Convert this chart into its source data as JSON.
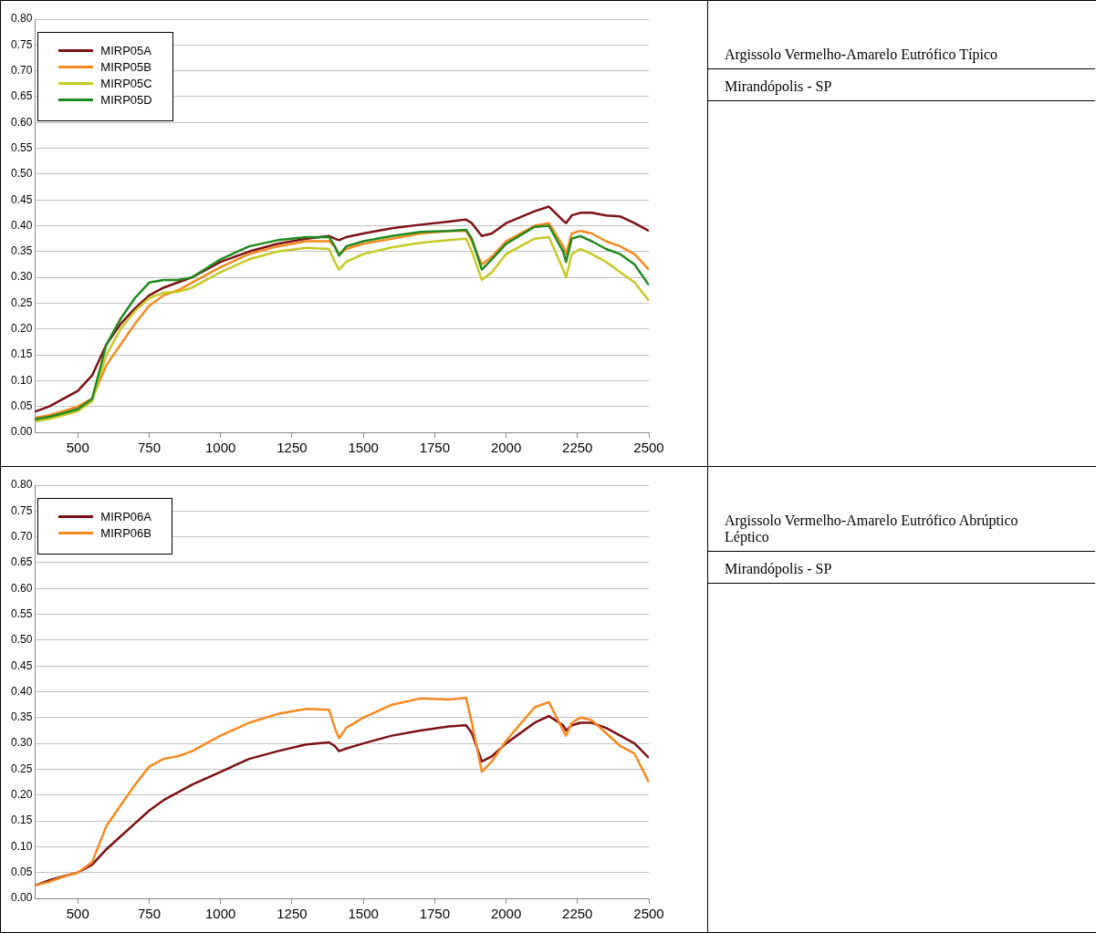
{
  "chart_data": [
    {
      "type": "line",
      "legend": "top left",
      "grid": "y",
      "xlim": [
        350,
        2500
      ],
      "xticks": [
        500,
        750,
        1000,
        1250,
        1500,
        1750,
        2000,
        2250,
        2500
      ],
      "ylim": [
        0,
        0.8
      ],
      "yticks": [
        {
          "value": 0,
          "label": "0.00"
        },
        {
          "value": 0.05,
          "label": "0.05"
        },
        {
          "value": 0.1,
          "label": "0.10"
        },
        {
          "value": 0.15,
          "label": "0.15"
        },
        {
          "value": 0.2,
          "label": "0.20"
        },
        {
          "value": 0.25,
          "label": "0.25"
        },
        {
          "value": 0.3,
          "label": "0.30"
        },
        {
          "value": 0.35,
          "label": "0.35"
        },
        {
          "value": 0.4,
          "label": "0.40"
        },
        {
          "value": 0.45,
          "label": "0.45"
        },
        {
          "value": 0.5,
          "label": "0.50"
        },
        {
          "value": 0.55,
          "label": "0.55"
        },
        {
          "value": 0.6,
          "label": "0.60"
        },
        {
          "value": 0.65,
          "label": "0.65"
        },
        {
          "value": 0.7,
          "label": "0.70"
        },
        {
          "value": 0.75,
          "label": "0.75"
        },
        {
          "value": 0.8,
          "label": "0.80"
        }
      ],
      "x": [
        350,
        400,
        450,
        500,
        550,
        600,
        650,
        700,
        750,
        800,
        850,
        900,
        1000,
        1100,
        1200,
        1300,
        1380,
        1400,
        1415,
        1440,
        1500,
        1600,
        1700,
        1800,
        1860,
        1880,
        1915,
        1950,
        2000,
        2100,
        2150,
        2200,
        2210,
        2230,
        2260,
        2300,
        2350,
        2400,
        2450,
        2500
      ],
      "series": [
        {
          "name": "MIRP05A",
          "color": "#7b1113",
          "values": [
            0.04,
            0.05,
            0.065,
            0.08,
            0.11,
            0.17,
            0.21,
            0.24,
            0.265,
            0.28,
            0.29,
            0.3,
            0.33,
            0.35,
            0.365,
            0.375,
            0.38,
            0.375,
            0.372,
            0.378,
            0.385,
            0.395,
            0.402,
            0.408,
            0.412,
            0.405,
            0.38,
            0.385,
            0.405,
            0.428,
            0.437,
            0.41,
            0.405,
            0.42,
            0.425,
            0.425,
            0.42,
            0.418,
            0.405,
            0.39
          ]
        },
        {
          "name": "MIRP05B",
          "color": "#f7891f",
          "values": [
            0.028,
            0.033,
            0.041,
            0.05,
            0.065,
            0.13,
            0.17,
            0.21,
            0.245,
            0.265,
            0.275,
            0.29,
            0.32,
            0.345,
            0.36,
            0.37,
            0.37,
            0.36,
            0.345,
            0.355,
            0.365,
            0.375,
            0.385,
            0.39,
            0.39,
            0.37,
            0.325,
            0.34,
            0.37,
            0.4,
            0.405,
            0.36,
            0.345,
            0.385,
            0.39,
            0.385,
            0.37,
            0.36,
            0.345,
            0.315
          ]
        },
        {
          "name": "MIRP05C",
          "color": "#c6c926",
          "values": [
            0.021,
            0.026,
            0.033,
            0.041,
            0.06,
            0.15,
            0.2,
            0.235,
            0.26,
            0.27,
            0.272,
            0.28,
            0.31,
            0.335,
            0.35,
            0.357,
            0.355,
            0.33,
            0.315,
            0.33,
            0.345,
            0.358,
            0.367,
            0.372,
            0.375,
            0.35,
            0.295,
            0.31,
            0.345,
            0.375,
            0.378,
            0.315,
            0.3,
            0.345,
            0.355,
            0.345,
            0.33,
            0.31,
            0.29,
            0.255
          ]
        },
        {
          "name": "MIRP05D",
          "color": "#1f8a1f",
          "values": [
            0.025,
            0.03,
            0.037,
            0.045,
            0.065,
            0.17,
            0.22,
            0.26,
            0.29,
            0.295,
            0.295,
            0.3,
            0.335,
            0.36,
            0.372,
            0.378,
            0.378,
            0.36,
            0.342,
            0.36,
            0.37,
            0.38,
            0.388,
            0.39,
            0.392,
            0.375,
            0.315,
            0.335,
            0.365,
            0.398,
            0.4,
            0.35,
            0.33,
            0.375,
            0.38,
            0.37,
            0.355,
            0.345,
            0.325,
            0.285
          ]
        }
      ]
    },
    {
      "type": "other",
      "annotations": [
        "Argissolo Vermelho-Amarelo Eutrófico Típico",
        "Mirandópolis - SP"
      ]
    },
    {
      "type": "line",
      "legend": "top left",
      "grid": "y",
      "xlim": [
        350,
        2500
      ],
      "xticks": [
        500,
        750,
        1000,
        1250,
        1500,
        1750,
        2000,
        2250,
        2500
      ],
      "ylim": [
        0,
        0.8
      ],
      "yticks": [
        {
          "value": 0,
          "label": "0.00"
        },
        {
          "value": 0.05,
          "label": "0.05"
        },
        {
          "value": 0.1,
          "label": "0.10"
        },
        {
          "value": 0.15,
          "label": "0.15"
        },
        {
          "value": 0.2,
          "label": "0.20"
        },
        {
          "value": 0.25,
          "label": "0.25"
        },
        {
          "value": 0.3,
          "label": "0.30"
        },
        {
          "value": 0.35,
          "label": "0.35"
        },
        {
          "value": 0.4,
          "label": "0.40"
        },
        {
          "value": 0.45,
          "label": "0.45"
        },
        {
          "value": 0.5,
          "label": "0.50"
        },
        {
          "value": 0.55,
          "label": "0.55"
        },
        {
          "value": 0.6,
          "label": "0.60"
        },
        {
          "value": 0.65,
          "label": "0.65"
        },
        {
          "value": 0.7,
          "label": "0.70"
        },
        {
          "value": 0.75,
          "label": "0.75"
        },
        {
          "value": 0.8,
          "label": "0.80"
        }
      ],
      "x": [
        350,
        400,
        450,
        500,
        550,
        600,
        650,
        700,
        750,
        800,
        850,
        900,
        1000,
        1100,
        1200,
        1300,
        1380,
        1400,
        1415,
        1440,
        1500,
        1600,
        1700,
        1800,
        1860,
        1880,
        1915,
        1950,
        2000,
        2100,
        2150,
        2200,
        2210,
        2230,
        2260,
        2300,
        2350,
        2400,
        2450,
        2500
      ],
      "series": [
        {
          "name": "MIRP06A",
          "color": "#7b1113",
          "values": [
            0.025,
            0.035,
            0.043,
            0.05,
            0.065,
            0.095,
            0.12,
            0.145,
            0.17,
            0.19,
            0.205,
            0.22,
            0.245,
            0.27,
            0.285,
            0.298,
            0.302,
            0.295,
            0.285,
            0.29,
            0.3,
            0.315,
            0.325,
            0.333,
            0.335,
            0.32,
            0.265,
            0.275,
            0.3,
            0.34,
            0.353,
            0.335,
            0.325,
            0.335,
            0.34,
            0.34,
            0.33,
            0.315,
            0.3,
            0.272
          ]
        },
        {
          "name": "MIRP06B",
          "color": "#f7891f",
          "values": [
            0.025,
            0.032,
            0.042,
            0.05,
            0.07,
            0.14,
            0.18,
            0.22,
            0.255,
            0.27,
            0.275,
            0.285,
            0.315,
            0.34,
            0.357,
            0.367,
            0.365,
            0.33,
            0.31,
            0.33,
            0.35,
            0.375,
            0.387,
            0.385,
            0.388,
            0.34,
            0.245,
            0.265,
            0.305,
            0.37,
            0.38,
            0.325,
            0.315,
            0.34,
            0.35,
            0.345,
            0.32,
            0.295,
            0.28,
            0.225
          ]
        }
      ]
    },
    {
      "type": "other",
      "annotations": [
        "Argissolo Vermelho-Amarelo Eutrófico Abrúptico Léptico",
        "Mirandópolis - SP"
      ]
    }
  ]
}
